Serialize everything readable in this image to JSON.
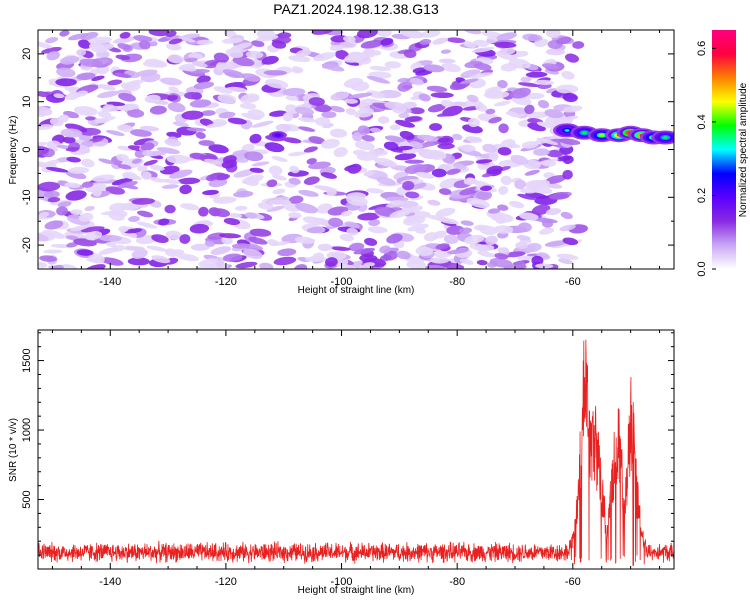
{
  "title": "PAZ1.2024.198.12.38.G13",
  "chart_data": [
    {
      "type": "heatmap",
      "xlabel": "Height of straight line (km)",
      "ylabel": "Frequency (Hz)",
      "xlim": [
        -152.5,
        -42.5
      ],
      "ylim": [
        -25,
        25
      ],
      "x_ticks": [
        -140,
        -120,
        -100,
        -80,
        -60
      ],
      "x_tick_labels": [
        "-140",
        "-120",
        "-100",
        "-80",
        "-60"
      ],
      "y_ticks": [
        -20,
        -10,
        0,
        10,
        20
      ],
      "y_tick_labels": [
        "-20",
        "-10",
        "0",
        "10",
        "20"
      ],
      "colorbar": {
        "label": "Normalized spectral amplitude",
        "range": [
          0.0,
          0.65
        ],
        "ticks": [
          0.0,
          0.2,
          0.4,
          0.6
        ],
        "tick_labels": [
          "0.0",
          "0.2",
          "0.4",
          "0.6"
        ],
        "colormap": [
          "#ffffff",
          "#c9a6f5",
          "#8a2be2",
          "#5a00ff",
          "#0000ff",
          "#00ffff",
          "#00ff00",
          "#ffff00",
          "#ff8000",
          "#ff0040",
          "#ff007f"
        ]
      },
      "noise_region_x": [
        -152.5,
        -59
      ],
      "noise_amplitude_range": [
        0.0,
        0.15
      ],
      "signal_ridge": [
        {
          "x": -61,
          "y": 4,
          "value": 0.25
        },
        {
          "x": -58,
          "y": 3.5,
          "value": 0.3
        },
        {
          "x": -55,
          "y": 3,
          "value": 0.35
        },
        {
          "x": -52,
          "y": 3,
          "value": 0.45
        },
        {
          "x": -50,
          "y": 3.5,
          "value": 0.55
        },
        {
          "x": -48,
          "y": 3,
          "value": 0.5
        },
        {
          "x": -46,
          "y": 2.5,
          "value": 0.35
        },
        {
          "x": -44,
          "y": 2.5,
          "value": 0.3
        }
      ],
      "highlight_blobs": [
        {
          "x": -111,
          "y": 3,
          "value": 0.2
        }
      ]
    },
    {
      "type": "line",
      "xlabel": "Height of straight line (km)",
      "ylabel": "SNR (10 * v/v)",
      "xlim": [
        -152.5,
        -42.5
      ],
      "ylim": [
        0,
        1720
      ],
      "x_ticks": [
        -140,
        -120,
        -100,
        -80,
        -60
      ],
      "x_tick_labels": [
        "-140",
        "-120",
        "-100",
        "-80",
        "-60"
      ],
      "y_ticks": [
        500,
        1000,
        1500
      ],
      "y_tick_labels": [
        "500",
        "1000",
        "1500"
      ],
      "color": "#e8201f",
      "baseline_noise": {
        "x_range": [
          -152.5,
          -60
        ],
        "mean": 120,
        "amplitude": 70
      },
      "envelope": [
        {
          "x": -152.5,
          "y": 130
        },
        {
          "x": -61,
          "y": 130
        },
        {
          "x": -60,
          "y": 250
        },
        {
          "x": -59,
          "y": 600
        },
        {
          "x": -58.5,
          "y": 1200
        },
        {
          "x": -58,
          "y": 1700
        },
        {
          "x": -57.5,
          "y": 1400
        },
        {
          "x": -57,
          "y": 1050
        },
        {
          "x": -56,
          "y": 1100
        },
        {
          "x": -55,
          "y": 700
        },
        {
          "x": -54,
          "y": 300
        },
        {
          "x": -53,
          "y": 900
        },
        {
          "x": -52,
          "y": 1100
        },
        {
          "x": -51,
          "y": 500
        },
        {
          "x": -50,
          "y": 1300
        },
        {
          "x": -49.5,
          "y": 1250
        },
        {
          "x": -49,
          "y": 700
        },
        {
          "x": -48,
          "y": 300
        },
        {
          "x": -47,
          "y": 150
        },
        {
          "x": -46,
          "y": 130
        },
        {
          "x": -42.5,
          "y": 130
        }
      ]
    }
  ]
}
